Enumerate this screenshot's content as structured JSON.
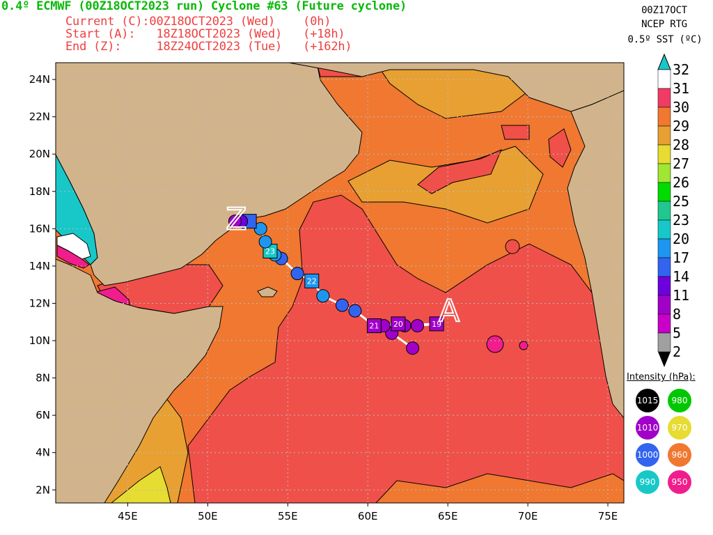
{
  "header": {
    "title": "0.4º ECMWF (00Z18OCT2023 run) Cyclone #63 (Future cyclone)",
    "current": "Current (C):00Z18OCT2023 (Wed)    (0h)",
    "start": "Start (A):   18Z18OCT2023 (Wed)   (+18h)",
    "end": "End (Z):     18Z24OCT2023 (Tue)   (+162h)"
  },
  "sst_source": {
    "line1": "00Z17OCT",
    "line2": "NCEP RTG",
    "line3": "0.5º SST (ºC)"
  },
  "colorbar": {
    "levels": [
      "32",
      "31",
      "30",
      "29",
      "28",
      "27",
      "26",
      "25",
      "23",
      "20",
      "17",
      "14",
      "11",
      "8",
      "5",
      "2"
    ],
    "colors": [
      "#18c8c8",
      "#ffffff",
      "#f03c64",
      "#f07830",
      "#e8a032",
      "#e6dc32",
      "#a0e632",
      "#00dc00",
      "#20c890",
      "#18c8c8",
      "#1e96f0",
      "#3264f0",
      "#6e00dc",
      "#a000c8",
      "#c800c8",
      "#a0a0a0"
    ]
  },
  "intensity_legend": {
    "title": "Intensity (hPa):",
    "items": [
      {
        "label": "1015",
        "color": "#000000"
      },
      {
        "label": "980",
        "color": "#00c800"
      },
      {
        "label": "1010",
        "color": "#a000c8"
      },
      {
        "label": "970",
        "color": "#e6dc32"
      },
      {
        "label": "1000",
        "color": "#3264f0"
      },
      {
        "label": "960",
        "color": "#f07830"
      },
      {
        "label": "990",
        "color": "#18c8c8"
      },
      {
        "label": "950",
        "color": "#f01e8c"
      }
    ]
  },
  "axes": {
    "lat_labels": [
      "24N",
      "22N",
      "20N",
      "18N",
      "16N",
      "14N",
      "12N",
      "10N",
      "8N",
      "6N",
      "4N",
      "2N"
    ],
    "lat_values": [
      24,
      22,
      20,
      18,
      16,
      14,
      12,
      10,
      8,
      6,
      4,
      2
    ],
    "lon_labels": [
      "45E",
      "50E",
      "55E",
      "60E",
      "65E",
      "70E",
      "75E"
    ],
    "lon_values": [
      45,
      50,
      55,
      60,
      65,
      70,
      75
    ],
    "lon_range": [
      40.5,
      76
    ],
    "lat_range": [
      1.3,
      24.9
    ]
  },
  "track": {
    "points": [
      {
        "lon": 62.8,
        "lat": 9.6,
        "color": "#a000c8"
      },
      {
        "lon": 61.5,
        "lat": 10.4,
        "color": "#a000c8"
      },
      {
        "lon": 62.3,
        "lat": 10.8,
        "color": "#a000c8"
      },
      {
        "lon": 63.1,
        "lat": 10.8,
        "color": "#a000c8"
      },
      {
        "lon": 64.3,
        "lat": 10.9,
        "color": "#a000c8",
        "label": "19",
        "shape": "square"
      },
      {
        "lon": 61.0,
        "lat": 10.8,
        "color": "#a000c8"
      },
      {
        "lon": 61.9,
        "lat": 10.9,
        "color": "#a000c8",
        "label": "20",
        "shape": "square"
      },
      {
        "lon": 60.4,
        "lat": 10.8,
        "color": "#a000c8",
        "label": "21",
        "shape": "square"
      },
      {
        "lon": 59.2,
        "lat": 11.6,
        "color": "#3264f0"
      },
      {
        "lon": 58.4,
        "lat": 11.9,
        "color": "#3264f0"
      },
      {
        "lon": 57.2,
        "lat": 12.4,
        "color": "#1e96f0"
      },
      {
        "lon": 56.5,
        "lat": 13.2,
        "color": "#1e96f0",
        "label": "22",
        "shape": "square"
      },
      {
        "lon": 55.6,
        "lat": 13.6,
        "color": "#3264f0"
      },
      {
        "lon": 54.6,
        "lat": 14.4,
        "color": "#3264f0"
      },
      {
        "lon": 54.2,
        "lat": 14.6,
        "color": "#1e96f0"
      },
      {
        "lon": 53.9,
        "lat": 14.8,
        "color": "#18c8c8",
        "label": "23",
        "shape": "square"
      },
      {
        "lon": 53.6,
        "lat": 15.3,
        "color": "#1e96f0"
      },
      {
        "lon": 53.3,
        "lat": 16.0,
        "color": "#1e96f0"
      },
      {
        "lon": 52.6,
        "lat": 16.4,
        "color": "#3264f0",
        "shape": "square"
      },
      {
        "lon": 52.1,
        "lat": 16.4,
        "color": "#6e00dc"
      },
      {
        "lon": 51.7,
        "lat": 16.4,
        "color": "#a000c8"
      }
    ],
    "start_marker": "A",
    "end_marker": "Z"
  }
}
